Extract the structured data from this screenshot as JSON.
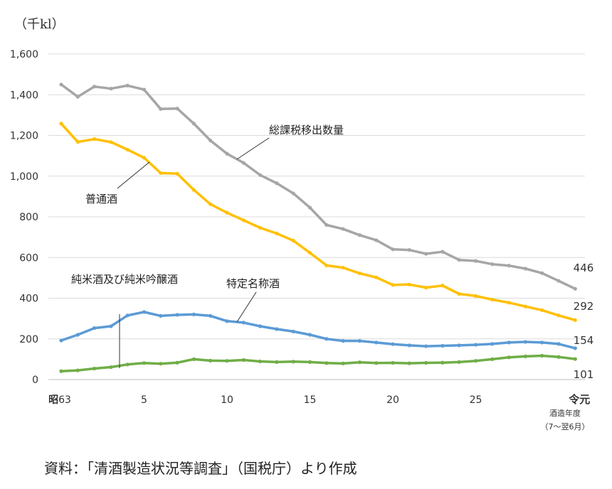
{
  "chart_data": {
    "type": "line",
    "unit": "（千kl）",
    "y_ticks": [
      "0",
      "200",
      "400",
      "600",
      "800",
      "1,000",
      "1,200",
      "1,400",
      "1,600"
    ],
    "ylim": [
      0,
      1600
    ],
    "x": [
      63,
      1,
      2,
      3,
      4,
      5,
      6,
      7,
      8,
      9,
      10,
      11,
      12,
      13,
      14,
      15,
      16,
      17,
      18,
      19,
      20,
      21,
      22,
      23,
      24,
      25,
      26,
      27,
      28,
      29,
      30,
      1
    ],
    "x_tick_labels": [
      {
        "index": 0,
        "era": "昭",
        "num": "63"
      },
      {
        "index": 5,
        "num": "5"
      },
      {
        "index": 10,
        "num": "10"
      },
      {
        "index": 15,
        "num": "15"
      },
      {
        "index": 20,
        "num": "20"
      },
      {
        "index": 25,
        "num": "25"
      },
      {
        "index": 31,
        "era": "令元"
      }
    ],
    "xlabel_lines": [
      "酒造年度",
      "（7～翌6月）"
    ],
    "series": [
      {
        "name": "総課税移出数量",
        "color": "#a6a6a6",
        "values": [
          1450,
          1390,
          1440,
          1430,
          1445,
          1425,
          1330,
          1332,
          1258,
          1175,
          1110,
          1065,
          1005,
          965,
          915,
          845,
          760,
          740,
          710,
          685,
          640,
          637,
          618,
          628,
          588,
          583,
          567,
          560,
          545,
          523,
          485,
          446
        ],
        "end_label": "446"
      },
      {
        "name": "普通酒",
        "color": "#ffc000",
        "values": [
          1258,
          1168,
          1182,
          1167,
          1130,
          1090,
          1015,
          1012,
          932,
          862,
          820,
          783,
          746,
          718,
          683,
          623,
          561,
          550,
          522,
          502,
          465,
          467,
          452,
          462,
          421,
          411,
          393,
          378,
          359,
          341,
          315,
          292
        ],
        "end_label": "292"
      },
      {
        "name": "特定名称酒",
        "color": "#5b9bd5",
        "values": [
          192,
          220,
          253,
          262,
          315,
          332,
          313,
          318,
          320,
          313,
          287,
          280,
          262,
          248,
          236,
          220,
          200,
          190,
          190,
          182,
          174,
          168,
          164,
          166,
          168,
          171,
          175,
          182,
          185,
          182,
          175,
          154
        ],
        "end_label": "154"
      },
      {
        "name": "純米酒及び純米吟醸酒",
        "color": "#70ad47",
        "values": [
          41,
          45,
          54,
          61,
          74,
          81,
          78,
          83,
          100,
          93,
          92,
          96,
          89,
          86,
          88,
          86,
          81,
          79,
          85,
          81,
          82,
          80,
          82,
          83,
          86,
          92,
          100,
          109,
          114,
          117,
          111,
          101
        ],
        "end_label": "101"
      }
    ]
  },
  "source": "資料：「清酒製造状況等調査」（国税庁）より作成"
}
